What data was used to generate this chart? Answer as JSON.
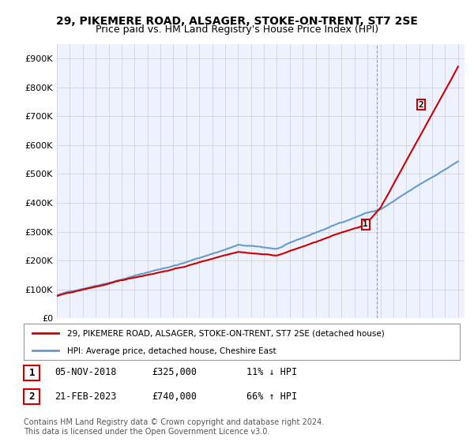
{
  "title_line1": "29, PIKEMERE ROAD, ALSAGER, STOKE-ON-TRENT, ST7 2SE",
  "title_line2": "Price paid vs. HM Land Registry's House Price Index (HPI)",
  "ylabel_ticks": [
    "£0",
    "£100K",
    "£200K",
    "£300K",
    "£400K",
    "£500K",
    "£600K",
    "£700K",
    "£800K",
    "£900K"
  ],
  "ytick_values": [
    0,
    100000,
    200000,
    300000,
    400000,
    500000,
    600000,
    700000,
    800000,
    900000
  ],
  "xlim": [
    1995,
    2026.5
  ],
  "ylim": [
    0,
    950000
  ],
  "hpi_color": "#6699CC",
  "price_color": "#CC0000",
  "marker1_date": 2018.85,
  "marker1_price": 325000,
  "marker2_date": 2023.13,
  "marker2_price": 740000,
  "vline_x": 2019.7,
  "legend_line1": "29, PIKEMERE ROAD, ALSAGER, STOKE-ON-TRENT, ST7 2SE (detached house)",
  "legend_line2": "HPI: Average price, detached house, Cheshire East",
  "table_row1": [
    "1",
    "05-NOV-2018",
    "£325,000",
    "11% ↓ HPI"
  ],
  "table_row2": [
    "2",
    "21-FEB-2023",
    "£740,000",
    "66% ↑ HPI"
  ],
  "footnote": "Contains HM Land Registry data © Crown copyright and database right 2024.\nThis data is licensed under the Open Government Licence v3.0.",
  "bg_color": "#FFFFFF",
  "plot_bg_color": "#EEF2FF",
  "grid_color": "#CCCCCC"
}
